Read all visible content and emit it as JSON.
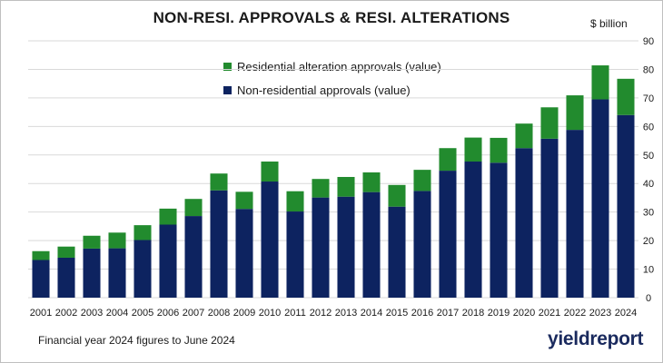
{
  "chart_data": {
    "type": "bar",
    "stacked": true,
    "title": "NON-RESI. APPROVALS & RESI. ALTERATIONS",
    "unit_label": "$ billion",
    "categories": [
      "2001",
      "2002",
      "2003",
      "2004",
      "2005",
      "2006",
      "2007",
      "2008",
      "2009",
      "2010",
      "2011",
      "2012",
      "2013",
      "2014",
      "2015",
      "2016",
      "2017",
      "2018",
      "2019",
      "2020",
      "2021",
      "2022",
      "2023",
      "2024"
    ],
    "series": [
      {
        "name": "Non-residential approvals (value)",
        "color": "#0d2360",
        "values": [
          13.2,
          14.0,
          17.2,
          17.3,
          20.2,
          25.6,
          28.6,
          37.6,
          31.1,
          40.7,
          30.2,
          35.1,
          35.4,
          37.0,
          31.9,
          37.4,
          44.5,
          47.7,
          47.3,
          52.4,
          55.7,
          58.8,
          69.5,
          64.0
        ]
      },
      {
        "name": "Residential alteration approvals (value)",
        "color": "#228b2e",
        "values": [
          3.1,
          3.9,
          4.5,
          5.5,
          5.2,
          5.6,
          6.0,
          5.9,
          6.0,
          7.0,
          7.1,
          6.5,
          6.9,
          6.9,
          7.6,
          7.4,
          7.9,
          8.4,
          8.7,
          8.6,
          11.0,
          12.1,
          11.9,
          12.7
        ]
      }
    ],
    "ylim": [
      0,
      90
    ],
    "yticks": [
      "0",
      "10",
      "20",
      "30",
      "40",
      "50",
      "60",
      "70",
      "80",
      "90"
    ],
    "y_axis_side": "right",
    "grid": true,
    "legend_placement": "top-left-inside"
  },
  "footnote": "Financial year 2024 figures to June 2024",
  "brand": "yieldreport"
}
